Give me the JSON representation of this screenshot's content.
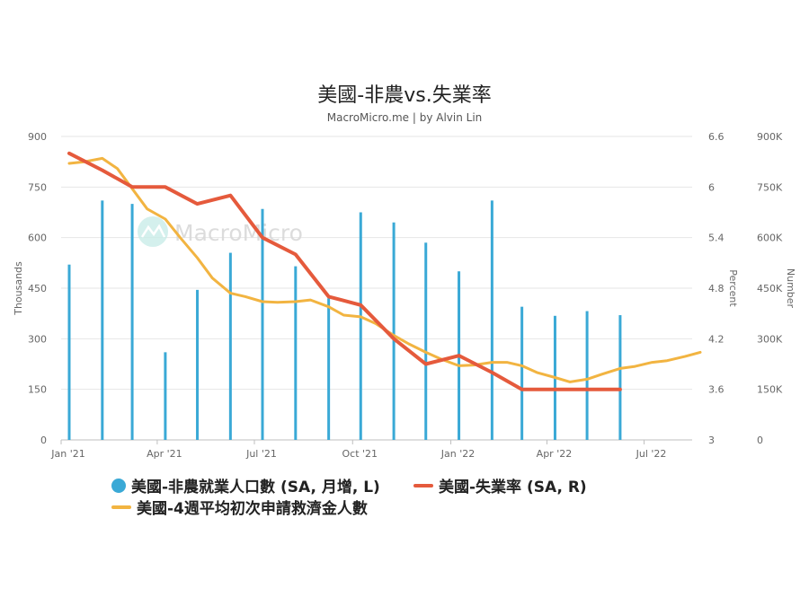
{
  "chart_data": {
    "type": "bar",
    "title": "美國-非農vs.失業率",
    "subtitle": "MacroMicro.me | by Alvin Lin",
    "watermark": "MacroMicro",
    "x_ticks": [
      "Jan '21",
      "Apr '21",
      "Jul '21",
      "Oct '21",
      "Jan '22",
      "Apr '22",
      "Jul '22"
    ],
    "y_left": {
      "label": "Thousands",
      "min": 0,
      "max": 900,
      "ticks": [
        "0",
        "150",
        "300",
        "450",
        "600",
        "750",
        "900"
      ]
    },
    "y_right1": {
      "label": "Percent",
      "min": 3,
      "max": 6.6,
      "ticks": [
        "3",
        "3.6",
        "4.2",
        "4.8",
        "5.4",
        "6",
        "6.6"
      ]
    },
    "y_right2": {
      "label": "Number",
      "min": 0,
      "max": 900000,
      "ticks": [
        "0",
        "150K",
        "300K",
        "450K",
        "600K",
        "750K",
        "900K"
      ]
    },
    "x_range": [
      "2021-01-01",
      "2022-08-15"
    ],
    "grid": true,
    "legend_position": "bottom",
    "series": [
      {
        "name": "美國-非農就業人口數 (SA, 月增, L)",
        "type": "bar",
        "axis": "left",
        "color": "#3aa9d6",
        "x": [
          "2021-01-01",
          "2021-02-01",
          "2021-03-01",
          "2021-04-01",
          "2021-05-01",
          "2021-06-01",
          "2021-07-01",
          "2021-08-01",
          "2021-09-01",
          "2021-10-01",
          "2021-11-01",
          "2021-12-01",
          "2022-01-01",
          "2022-02-01",
          "2022-03-01",
          "2022-04-01",
          "2022-05-01",
          "2022-06-01"
        ],
        "values": [
          520,
          710,
          700,
          260,
          445,
          555,
          685,
          515,
          420,
          675,
          645,
          585,
          500,
          710,
          395,
          368,
          382,
          370
        ]
      },
      {
        "name": "美國-失業率 (SA, R)",
        "type": "line",
        "axis": "right1",
        "color": "#e55a3c",
        "x": [
          "2021-01-01",
          "2021-02-01",
          "2021-03-01",
          "2021-04-01",
          "2021-05-01",
          "2021-06-01",
          "2021-07-01",
          "2021-08-01",
          "2021-09-01",
          "2021-10-01",
          "2021-11-01",
          "2021-12-01",
          "2022-01-01",
          "2022-02-01",
          "2022-03-01",
          "2022-04-01",
          "2022-05-01",
          "2022-06-01"
        ],
        "values": [
          6.4,
          6.2,
          6.0,
          6.0,
          5.8,
          5.9,
          5.4,
          5.2,
          4.7,
          4.6,
          4.2,
          3.9,
          4.0,
          3.8,
          3.6,
          3.6,
          3.6,
          3.6
        ]
      },
      {
        "name": "美國-4週平均初次申請救濟金人數",
        "type": "line",
        "axis": "right2",
        "color": "#f2b441",
        "x": [
          "2021-01-01",
          "2021-01-15",
          "2021-02-01",
          "2021-02-15",
          "2021-03-01",
          "2021-03-15",
          "2021-04-01",
          "2021-04-15",
          "2021-05-01",
          "2021-05-15",
          "2021-06-01",
          "2021-06-15",
          "2021-07-01",
          "2021-07-15",
          "2021-08-01",
          "2021-08-15",
          "2021-09-01",
          "2021-09-15",
          "2021-10-01",
          "2021-10-15",
          "2021-11-01",
          "2021-11-15",
          "2021-12-01",
          "2021-12-15",
          "2022-01-01",
          "2022-01-15",
          "2022-02-01",
          "2022-02-15",
          "2022-03-01",
          "2022-03-15",
          "2022-04-01",
          "2022-04-15",
          "2022-05-01",
          "2022-05-15",
          "2022-06-01",
          "2022-06-15",
          "2022-07-01",
          "2022-07-15",
          "2022-08-01",
          "2022-08-15"
        ],
        "values": [
          820000,
          825000,
          835000,
          805000,
          745000,
          685000,
          655000,
          600000,
          540000,
          480000,
          435000,
          425000,
          410000,
          408000,
          410000,
          415000,
          395000,
          370000,
          365000,
          345000,
          310000,
          285000,
          260000,
          240000,
          220000,
          222000,
          230000,
          230000,
          220000,
          200000,
          185000,
          172000,
          180000,
          195000,
          212000,
          218000,
          230000,
          235000,
          248000,
          260000
        ]
      }
    ]
  }
}
